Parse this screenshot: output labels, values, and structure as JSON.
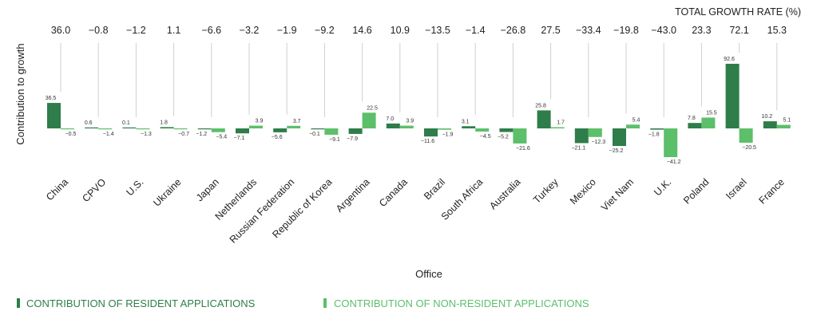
{
  "chart_data": {
    "type": "bar",
    "ylabel": "Contribution to growth",
    "xlabel": "Office",
    "total_title": "TOTAL GROWTH RATE (%)",
    "categories": [
      "China",
      "CPVO",
      "U.S.",
      "Ukraine",
      "Japan",
      "Netherlands",
      "Russian Federation",
      "Republic of Korea",
      "Argentina",
      "Canada",
      "Brazil",
      "South Africa",
      "Australia",
      "Turkey",
      "Mexico",
      "Viet Nam",
      "U.K.",
      "Poland",
      "Israel",
      "France"
    ],
    "total_growth_rate": [
      "36.0",
      "−0.8",
      "−1.2",
      "1.1",
      "−6.6",
      "−3.2",
      "−1.9",
      "−9.2",
      "14.6",
      "10.9",
      "−13.5",
      "−1.4",
      "−26.8",
      "27.5",
      "−33.4",
      "−19.8",
      "−43.0",
      "23.3",
      "72.1",
      "15.3"
    ],
    "series": [
      {
        "name": "CONTRIBUTION OF RESIDENT APPLICATIONS",
        "color": "#2e7d4a",
        "values": [
          36.5,
          0.6,
          0.1,
          1.8,
          -1.2,
          -7.1,
          -5.6,
          -0.1,
          -7.9,
          7.0,
          -11.6,
          3.1,
          -5.2,
          25.8,
          -21.1,
          -25.2,
          -1.8,
          7.8,
          92.6,
          10.2
        ],
        "labels": [
          "36.5",
          "0.6",
          "0.1",
          "1.8",
          "−1.2",
          "−7.1",
          "−5.6",
          "−0.1",
          "−7.9",
          "7.0",
          "−11.6",
          "3.1",
          "−5.2",
          "25.8",
          "−21.1",
          "−25.2",
          "−1.8",
          "7.8",
          "92.6",
          "10.2"
        ]
      },
      {
        "name": "CONTRIBUTION OF NON-RESIDENT APPLICATIONS",
        "color": "#5cbf6a",
        "values": [
          -0.5,
          -1.4,
          -1.3,
          -0.7,
          -5.4,
          3.9,
          3.7,
          -9.1,
          22.5,
          3.9,
          -1.9,
          -4.5,
          -21.6,
          1.7,
          -12.3,
          5.4,
          -41.2,
          15.5,
          -20.5,
          5.1
        ],
        "labels": [
          "−0.5",
          "−1.4",
          "−1.3",
          "−0.7",
          "−5.4",
          "3.9",
          "3.7",
          "−9.1",
          "22.5",
          "3.9",
          "−1.9",
          "−4.5",
          "−21.6",
          "1.7",
          "−12.3",
          "5.4",
          "−41.2",
          "15.5",
          "−20.5",
          "5.1"
        ]
      }
    ],
    "legend_position": "bottom-left",
    "grid": false
  }
}
